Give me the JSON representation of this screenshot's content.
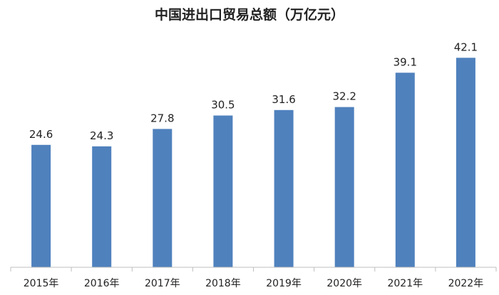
{
  "chart_data": {
    "type": "bar",
    "title": "中国进出口贸易总额（万亿元）",
    "categories": [
      "2015年",
      "2016年",
      "2017年",
      "2018年",
      "2019年",
      "2020年",
      "2021年",
      "2022年"
    ],
    "values": [
      24.6,
      24.3,
      27.8,
      30.5,
      31.6,
      32.2,
      39.1,
      42.1
    ],
    "xlabel": "",
    "ylabel": "",
    "ylim": [
      0,
      45
    ],
    "grid": false,
    "legend": "none",
    "bar_color": "#4f81bd"
  }
}
